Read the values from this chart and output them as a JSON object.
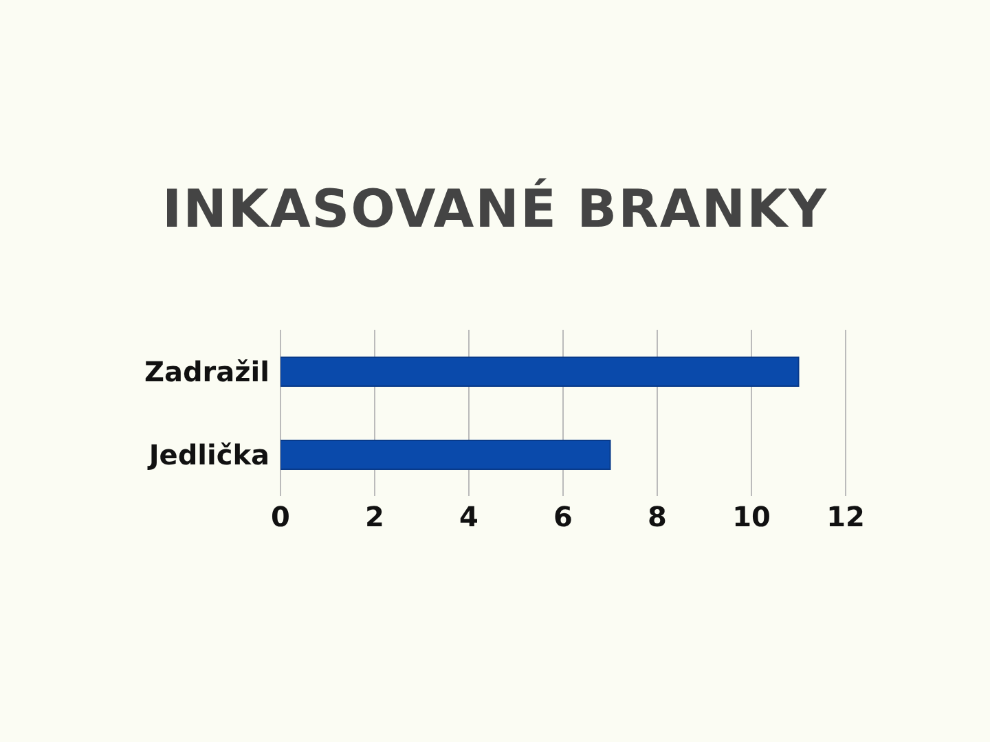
{
  "chart_data": {
    "type": "bar",
    "orientation": "horizontal",
    "title": "INKASOVANÉ BRANKY",
    "categories": [
      "Zadražil",
      "Jedlička"
    ],
    "values": [
      11,
      7
    ],
    "color": "#0a4aab",
    "xlim": [
      0,
      12
    ],
    "xticks": [
      0,
      2,
      4,
      6,
      8,
      10,
      12
    ],
    "grid": "x"
  }
}
